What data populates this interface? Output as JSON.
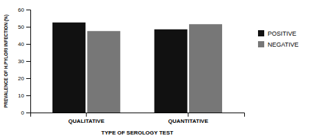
{
  "chart_data": {
    "type": "bar",
    "xlabel": "TYPE OF SEROLOGY TEST",
    "ylabel": "PREVALENCE OF H.PYLORI INFECTION (%)",
    "categories": [
      "QUALITATIVE",
      "QUANTITATIVE"
    ],
    "series": [
      {
        "name": "POSITIVE",
        "color": "#111111",
        "values": [
          52.5,
          48.5
        ]
      },
      {
        "name": "NEGATIVE",
        "color": "#777777",
        "values": [
          47.5,
          51.5
        ]
      }
    ],
    "ylim": [
      0,
      60
    ],
    "yticks": [
      0,
      10,
      20,
      30,
      40,
      50,
      60
    ],
    "grid": false,
    "legend": "right"
  }
}
